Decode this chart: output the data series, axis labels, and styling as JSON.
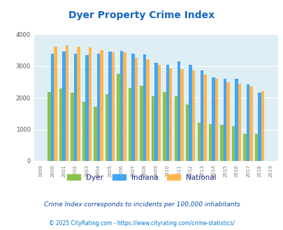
{
  "title": "Dyer Property Crime Index",
  "years": [
    1999,
    2000,
    2001,
    2002,
    2003,
    2004,
    2005,
    2006,
    2007,
    2008,
    2009,
    2010,
    2011,
    2012,
    2013,
    2014,
    2015,
    2016,
    2017,
    2018,
    2019
  ],
  "dyer": [
    0,
    2190,
    2300,
    2160,
    1870,
    1730,
    2110,
    2760,
    2320,
    2390,
    2040,
    2180,
    2050,
    1790,
    1220,
    1160,
    1140,
    1100,
    860,
    860,
    0
  ],
  "indiana": [
    0,
    3390,
    3460,
    3390,
    3360,
    3400,
    3460,
    3490,
    3390,
    3370,
    3110,
    3040,
    3160,
    3040,
    2870,
    2640,
    2600,
    2600,
    2430,
    2170,
    0
  ],
  "national": [
    0,
    3620,
    3660,
    3620,
    3590,
    3510,
    3430,
    3430,
    3260,
    3210,
    3040,
    2940,
    2910,
    2860,
    2740,
    2610,
    2490,
    2450,
    2360,
    2200,
    0
  ],
  "dyer_color": "#8bc34a",
  "indiana_color": "#42a5f5",
  "national_color": "#ffb74d",
  "bg_color": "#deeef5",
  "title_color": "#1565c0",
  "ylabel_max": 4000,
  "yticks": [
    0,
    1000,
    2000,
    3000,
    4000
  ],
  "subtitle": "Crime Index corresponds to incidents per 100,000 inhabitants",
  "footer": "© 2025 CityRating.com - https://www.cityrating.com/crime-statistics/",
  "subtitle_color": "#0d47a1",
  "footer_color": "#0077cc",
  "legend_labels": [
    "Dyer",
    "Indiana",
    "National"
  ]
}
